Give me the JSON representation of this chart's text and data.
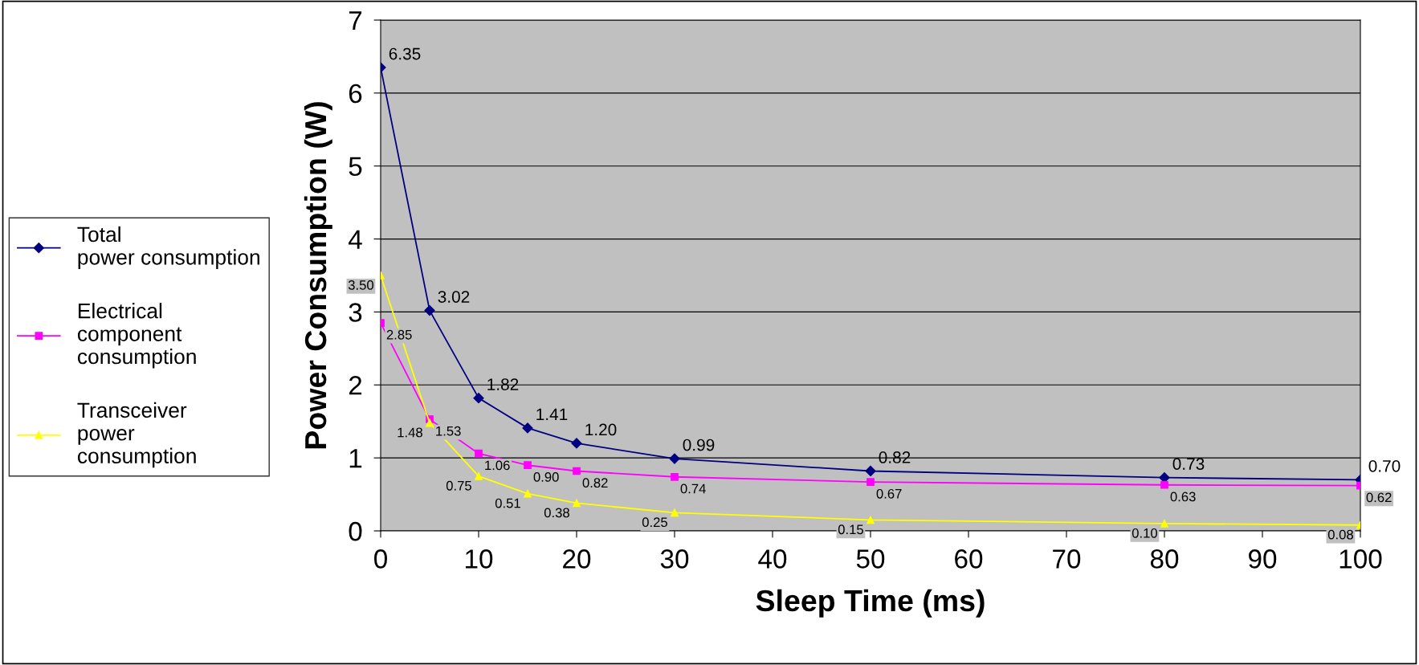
{
  "chart_data": {
    "type": "line",
    "xlabel": "Sleep Time (ms)",
    "ylabel": "Power Consumption (W)",
    "x": [
      0,
      5,
      10,
      15,
      20,
      30,
      50,
      80,
      100
    ],
    "series": [
      {
        "name": "Total power consumption",
        "color": "#000080",
        "marker": "diamond",
        "values": [
          6.35,
          3.02,
          1.82,
          1.41,
          1.2,
          0.99,
          0.82,
          0.73,
          0.7
        ],
        "value_labels": [
          "6.35",
          "3.02",
          "1.82",
          "1.41",
          "1.20",
          "0.99",
          "0.82",
          "0.73",
          "0.70"
        ]
      },
      {
        "name": "Electrical component consumption",
        "color": "#ff00ff",
        "marker": "square",
        "values": [
          2.85,
          1.53,
          1.06,
          0.9,
          0.82,
          0.74,
          0.67,
          0.63,
          0.62
        ],
        "value_labels": [
          "2.85",
          "1.53",
          "1.06",
          "0.90",
          "0.82",
          "0.74",
          "0.67",
          "0.63",
          "0.62"
        ]
      },
      {
        "name": "Transceiver power consumption",
        "color": "#ffff00",
        "marker": "triangle",
        "values": [
          3.5,
          1.48,
          0.75,
          0.51,
          0.38,
          0.25,
          0.15,
          0.1,
          0.08
        ],
        "value_labels": [
          "3.50",
          "1.48",
          "0.75",
          "0.51",
          "0.38",
          "0.25",
          "0.15",
          "0.10",
          "0.08"
        ]
      }
    ],
    "xlim": [
      0,
      100
    ],
    "xticks": [
      0,
      10,
      20,
      30,
      40,
      50,
      60,
      70,
      80,
      90,
      100
    ],
    "ylim": [
      0,
      7
    ],
    "yticks": [
      0,
      1,
      2,
      3,
      4,
      5,
      6,
      7
    ],
    "grid": "y",
    "legend": "left",
    "line_style": "solid"
  }
}
